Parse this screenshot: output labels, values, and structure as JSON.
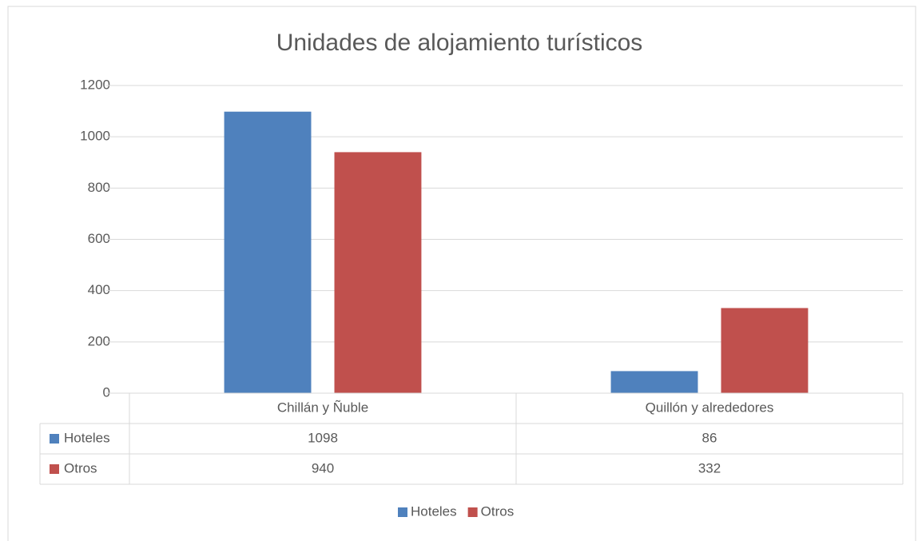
{
  "chart_data": {
    "type": "bar",
    "title": "Unidades de alojamiento turísticos",
    "categories": [
      "Chillán y Ñuble",
      "Quillón y alrededores"
    ],
    "series": [
      {
        "name": "Hoteles",
        "color": "#4f81bd",
        "values": [
          1098,
          86
        ]
      },
      {
        "name": "Otros",
        "color": "#c0504d",
        "values": [
          940,
          332
        ]
      }
    ],
    "ylim": [
      0,
      1200
    ],
    "yticks": [
      0,
      200,
      400,
      600,
      800,
      1000,
      1200
    ],
    "grid": true,
    "legend": "bottom",
    "data_table": true
  }
}
